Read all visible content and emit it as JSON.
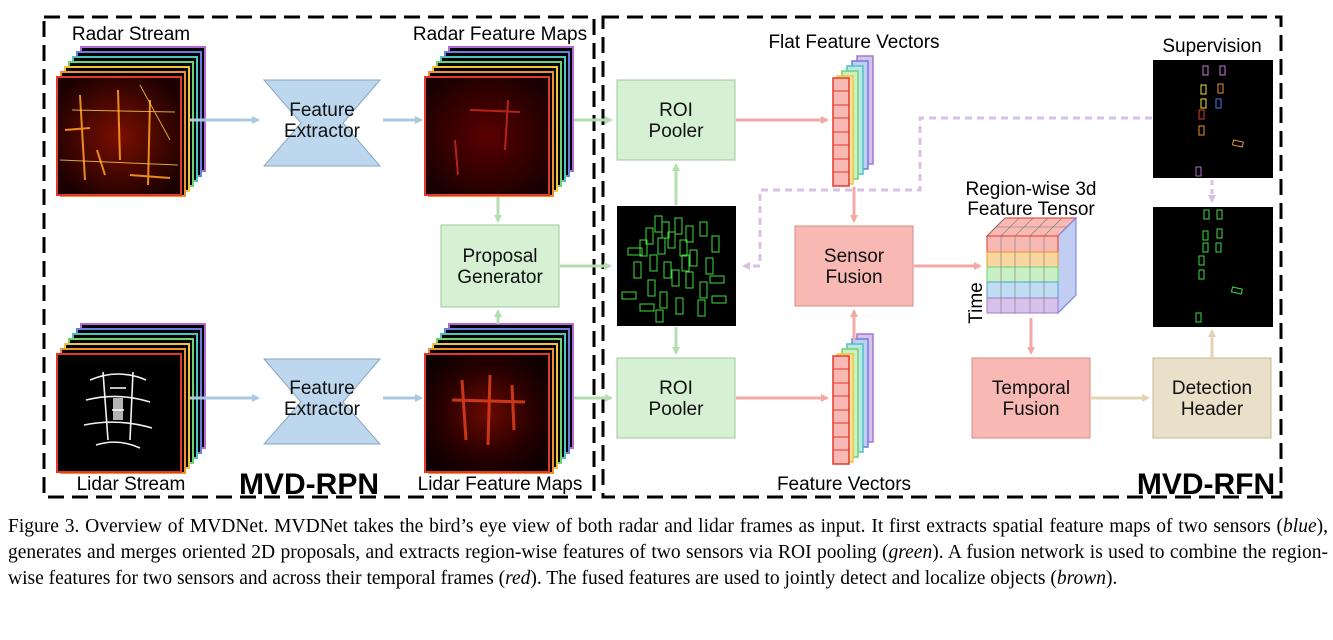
{
  "labels": {
    "radar_stream": "Radar Stream",
    "lidar_stream": "Lidar Stream",
    "radar_feature_maps": "Radar Feature Maps",
    "lidar_feature_maps": "Lidar Feature Maps",
    "flat_feature_vectors": "Flat Feature Vectors",
    "feature_vectors": "Feature Vectors",
    "supervision": "Supervision",
    "tensor_title_line1": "Region-wise 3d",
    "tensor_title_line2": "Feature Tensor",
    "time_axis": "Time",
    "mvd_rpn": "MVD-RPN",
    "mvd_rfn": "MVD-RFN"
  },
  "blocks": {
    "feature_extractor_line1": "Feature",
    "feature_extractor_line2": "Extractor",
    "proposal_generator_line1": "Proposal",
    "proposal_generator_line2": "Generator",
    "roi_pooler_line1": "ROI",
    "roi_pooler_line2": "Pooler",
    "sensor_fusion_line1": "Sensor",
    "sensor_fusion_line2": "Fusion",
    "temporal_fusion_line1": "Temporal",
    "temporal_fusion_line2": "Fusion",
    "detection_header_line1": "Detection",
    "detection_header_line2": "Header"
  },
  "colors": {
    "blue_block": "#bdd7ee",
    "green_block": "#d5f0d2",
    "red_block": "#f8b9b5",
    "brown_block": "#eadfc8",
    "blue_arrow": "#a9c8e2",
    "green_arrow": "#b4deb0",
    "red_arrow": "#f2a8a4",
    "brown_arrow": "#e3d3b3",
    "supervision_arrow": "#d7bfe6"
  },
  "caption": {
    "part1": "Figure 3. Overview of MVDNet. MVDNet takes the bird’s eye view of both radar and lidar frames as input. It first extracts spatial feature maps of two sensors (",
    "blue": "blue",
    "part2": "), generates and merges oriented 2D proposals, and extracts region-wise features of two sensors via ROI pooling (",
    "green": "green",
    "part3": "). A fusion network is used to combine the region-wise features for two sensors and across their temporal frames (",
    "red": "red",
    "part4": "). The fused features are used to jointly detect and localize objects (",
    "brown": "brown",
    "part5": ")."
  }
}
